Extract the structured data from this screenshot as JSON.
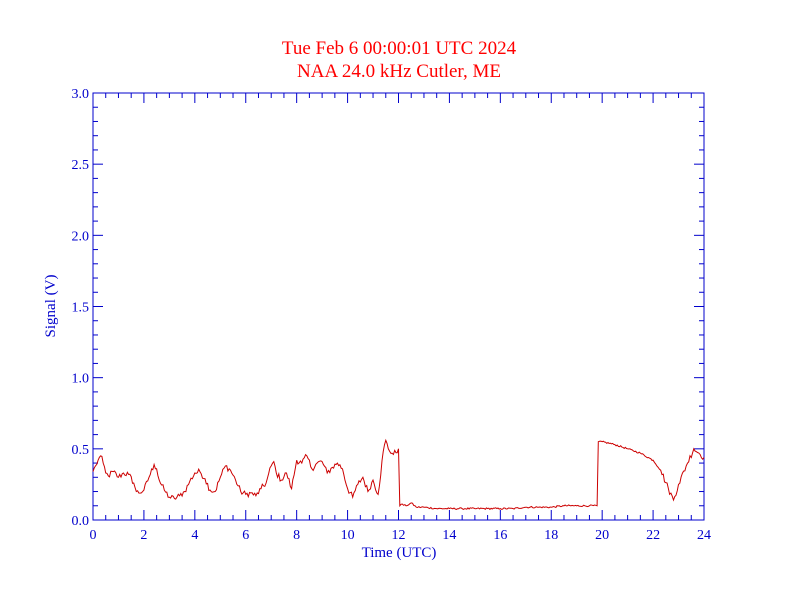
{
  "chart_data": {
    "type": "line",
    "title": "Tue Feb 6 00:00:01 UTC 2024",
    "subtitle": "NAA 24.0 kHz Cutler, ME",
    "xlabel": "Time (UTC)",
    "ylabel": "Signal (V)",
    "xlim": [
      0,
      24
    ],
    "ylim": [
      0,
      3.0
    ],
    "x_ticks": [
      "0",
      "2",
      "4",
      "6",
      "8",
      "10",
      "12",
      "14",
      "16",
      "18",
      "20",
      "22",
      "24"
    ],
    "y_ticks": [
      "0.0",
      "0.5",
      "1.0",
      "1.5",
      "2.0",
      "2.5",
      "3.0"
    ],
    "grid": false,
    "colors": {
      "series": "#cc0000",
      "axes": "#0000cc",
      "title": "#ff0000"
    },
    "series": [
      {
        "x": [
          0.0,
          0.1,
          0.2,
          0.3,
          0.4,
          0.5,
          0.6,
          0.8,
          1.0,
          1.2,
          1.4,
          1.6,
          1.7,
          1.8,
          2.0,
          2.2,
          2.4,
          2.5,
          2.6,
          2.8,
          3.0,
          3.2,
          3.4,
          3.6,
          3.8,
          4.0,
          4.2,
          4.4,
          4.6,
          4.8,
          5.0,
          5.2,
          5.4,
          5.6,
          5.8,
          6.0,
          6.2,
          6.4,
          6.6,
          6.8,
          7.0,
          7.1,
          7.2,
          7.4,
          7.6,
          7.8,
          8.0,
          8.2,
          8.4,
          8.6,
          8.8,
          9.0,
          9.2,
          9.4,
          9.6,
          9.8,
          10.0,
          10.2,
          10.4,
          10.6,
          10.8,
          11.0,
          11.2,
          11.4,
          11.5,
          11.6,
          11.8,
          12.0,
          12.05,
          12.1,
          12.3,
          12.5,
          12.7,
          13.0,
          13.5,
          14.0,
          14.5,
          15.0,
          15.5,
          16.0,
          16.5,
          17.0,
          17.5,
          18.0,
          18.5,
          19.0,
          19.5,
          19.8,
          19.85,
          20.0,
          20.5,
          21.0,
          21.5,
          22.0,
          22.3,
          22.6,
          22.8,
          23.0,
          23.3,
          23.6,
          23.8,
          24.0
        ],
        "y": [
          0.34,
          0.38,
          0.42,
          0.45,
          0.4,
          0.33,
          0.31,
          0.34,
          0.3,
          0.33,
          0.32,
          0.26,
          0.2,
          0.19,
          0.21,
          0.3,
          0.39,
          0.36,
          0.28,
          0.21,
          0.16,
          0.15,
          0.17,
          0.2,
          0.27,
          0.33,
          0.34,
          0.29,
          0.21,
          0.2,
          0.3,
          0.38,
          0.35,
          0.28,
          0.2,
          0.18,
          0.19,
          0.17,
          0.22,
          0.26,
          0.38,
          0.41,
          0.33,
          0.28,
          0.33,
          0.22,
          0.42,
          0.4,
          0.45,
          0.36,
          0.4,
          0.41,
          0.33,
          0.37,
          0.4,
          0.36,
          0.22,
          0.16,
          0.25,
          0.3,
          0.2,
          0.28,
          0.18,
          0.48,
          0.56,
          0.5,
          0.46,
          0.5,
          0.1,
          0.11,
          0.1,
          0.12,
          0.09,
          0.09,
          0.08,
          0.08,
          0.08,
          0.08,
          0.08,
          0.08,
          0.08,
          0.09,
          0.09,
          0.09,
          0.1,
          0.1,
          0.1,
          0.1,
          0.55,
          0.55,
          0.53,
          0.5,
          0.47,
          0.42,
          0.35,
          0.22,
          0.14,
          0.25,
          0.38,
          0.5,
          0.47,
          0.44
        ]
      }
    ]
  }
}
